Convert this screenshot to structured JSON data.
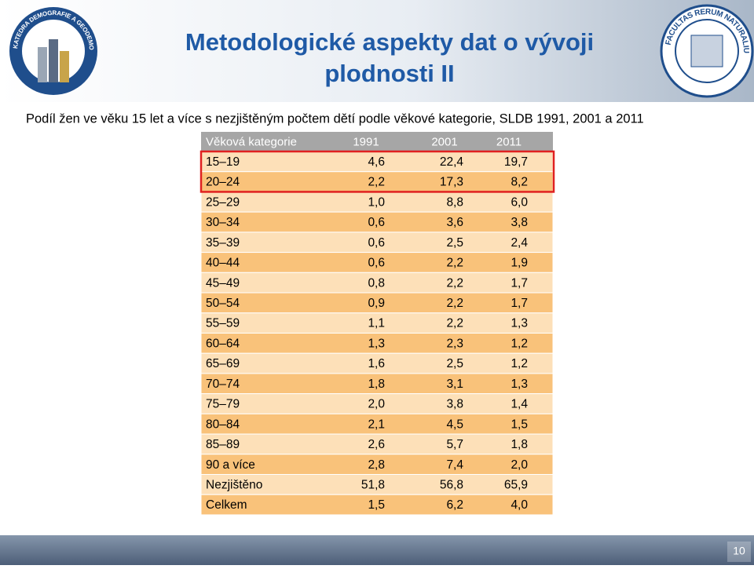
{
  "header": {
    "title_line1": "Metodologické aspekty dat o vývoji",
    "title_line2": "plodnosti II",
    "logo_left": "KATEDRA DEMOGRAFIE A GEODEMOGRAFIE",
    "logo_right": "FACULTAS RERUM NATURALIUM"
  },
  "subtitle": "Podíl žen ve věku 15 let a více s nezjištěným počtem dětí podle věkové kategorie, SLDB 1991, 2001 a 2011",
  "table": {
    "columns": [
      "Věková kategorie",
      "1991",
      "2001",
      "2011"
    ],
    "rows": [
      [
        "15–19",
        "4,6",
        "22,4",
        "19,7"
      ],
      [
        "20–24",
        "2,2",
        "17,3",
        "8,2"
      ],
      [
        "25–29",
        "1,0",
        "8,8",
        "6,0"
      ],
      [
        "30–34",
        "0,6",
        "3,6",
        "3,8"
      ],
      [
        "35–39",
        "0,6",
        "2,5",
        "2,4"
      ],
      [
        "40–44",
        "0,6",
        "2,2",
        "1,9"
      ],
      [
        "45–49",
        "0,8",
        "2,2",
        "1,7"
      ],
      [
        "50–54",
        "0,9",
        "2,2",
        "1,7"
      ],
      [
        "55–59",
        "1,1",
        "2,2",
        "1,3"
      ],
      [
        "60–64",
        "1,3",
        "2,3",
        "1,2"
      ],
      [
        "65–69",
        "1,6",
        "2,5",
        "1,2"
      ],
      [
        "70–74",
        "1,8",
        "3,1",
        "1,3"
      ],
      [
        "75–79",
        "2,0",
        "3,8",
        "1,4"
      ],
      [
        "80–84",
        "2,1",
        "4,5",
        "1,5"
      ],
      [
        "85–89",
        "2,6",
        "5,7",
        "1,8"
      ],
      [
        "90 a více",
        "2,8",
        "7,4",
        "2,0"
      ],
      [
        "Nezjištěno",
        "51,8",
        "56,8",
        "65,9"
      ],
      [
        "Celkem",
        "1,5",
        "6,2",
        "4,0"
      ]
    ]
  },
  "page_number": "10"
}
